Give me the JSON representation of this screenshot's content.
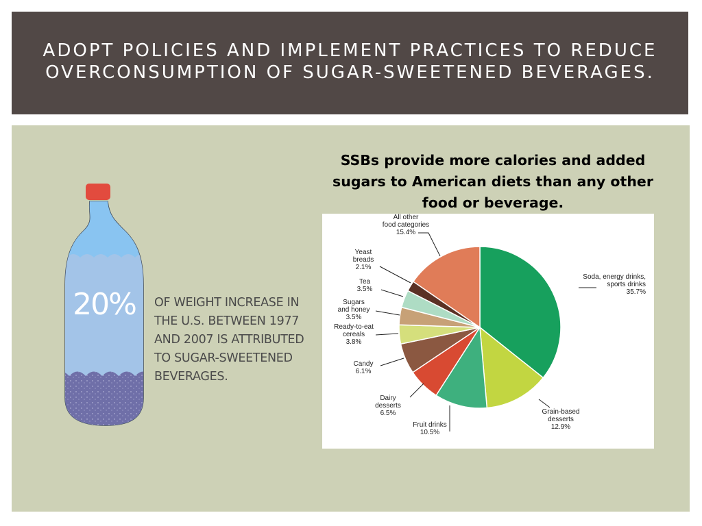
{
  "slide": {
    "title": "Adopt policies and implement practices to reduce overconsumption of sugar-sweetened beverages.",
    "stat_value": "20%",
    "stat_text": "Of weight increase in the U.S. between 1977 and 2007 is attributed to sugar-sweetened beverages.",
    "chart_heading": "SSBs provide more calories and added sugars to American diets than any other food or beverage.",
    "colors": {
      "title_bar": "#514846",
      "content_bg": "#cdd1b6",
      "bottle_water": "#a3c4e8",
      "bottle_body": "#89c4f1",
      "bottle_cap": "#e24b3e",
      "bottle_sediment": "#6f6fa8"
    },
    "icons": [
      "soda-bottle-icon"
    ]
  },
  "chart_data": {
    "type": "pie",
    "title": "",
    "slices": [
      {
        "label": "Soda, energy drinks, sports drinks",
        "lines": [
          "Soda, energy drinks,",
          "sports drinks",
          "35.7%"
        ],
        "value": 35.7,
        "color": "#17a05d"
      },
      {
        "label": "Grain-based desserts",
        "lines": [
          "Grain-based",
          "desserts",
          "12.9%"
        ],
        "value": 12.9,
        "color": "#c2d641"
      },
      {
        "label": "Fruit drinks",
        "lines": [
          "Fruit drinks",
          "10.5%"
        ],
        "value": 10.5,
        "color": "#3eb07e"
      },
      {
        "label": "Dairy desserts",
        "lines": [
          "Dairy",
          "desserts",
          "6.5%"
        ],
        "value": 6.5,
        "color": "#d84a32"
      },
      {
        "label": "Candy",
        "lines": [
          "Candy",
          "6.1%"
        ],
        "value": 6.1,
        "color": "#8b5841"
      },
      {
        "label": "Ready-to-eat cereals",
        "lines": [
          "Ready-to-eat",
          "cereals",
          "3.8%"
        ],
        "value": 3.8,
        "color": "#d5df7c"
      },
      {
        "label": "Sugars and honey",
        "lines": [
          "Sugars",
          "and honey",
          "3.5%"
        ],
        "value": 3.5,
        "color": "#c7a177"
      },
      {
        "label": "Tea",
        "lines": [
          "Tea",
          "3.5%"
        ],
        "value": 3.5,
        "color": "#aedcc4"
      },
      {
        "label": "Yeast breads",
        "lines": [
          "Yeast",
          "breads",
          "2.1%"
        ],
        "value": 2.1,
        "color": "#5b3124"
      },
      {
        "label": "All other food categories",
        "lines": [
          "All other",
          "food categories",
          "15.4%"
        ],
        "value": 15.4,
        "color": "#e07c58"
      }
    ]
  }
}
